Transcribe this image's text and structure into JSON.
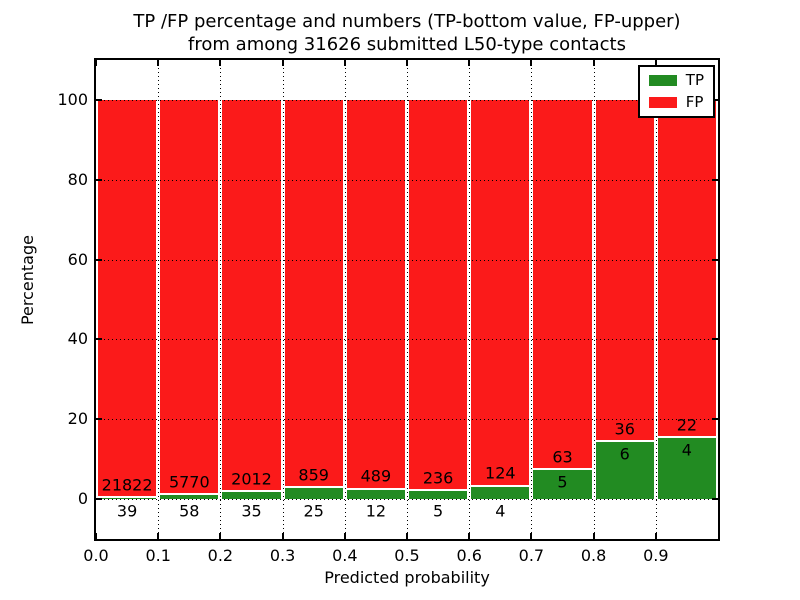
{
  "chart_data": {
    "type": "bar",
    "stacked": true,
    "normalized_to_percent": true,
    "title_lines": [
      "TP /FP percentage and numbers (TP-bottom value, FP-upper)",
      "from among 31626 submitted L50-type contacts"
    ],
    "xlabel": "Predicted probability",
    "ylabel": "Percentage",
    "categories": [
      "0.0-0.1",
      "0.1-0.2",
      "0.2-0.3",
      "0.3-0.4",
      "0.4-0.5",
      "0.5-0.6",
      "0.6-0.7",
      "0.7-0.8",
      "0.8-0.9",
      "0.9-1.0"
    ],
    "series": [
      {
        "name": "TP",
        "color": "#228b22",
        "values": [
          39,
          58,
          35,
          25,
          12,
          5,
          4,
          5,
          6,
          4
        ]
      },
      {
        "name": "FP",
        "color": "#fb1a1a",
        "values": [
          21822,
          5770,
          2012,
          859,
          489,
          236,
          124,
          63,
          36,
          22
        ]
      }
    ],
    "x_tick_labels": [
      "0.0",
      "0.1",
      "0.2",
      "0.3",
      "0.4",
      "0.5",
      "0.6",
      "0.7",
      "0.8",
      "0.9"
    ],
    "y_tick_values": [
      0,
      20,
      40,
      60,
      80,
      100
    ],
    "xlim": [
      0.0,
      1.0
    ],
    "ylim": [
      -10,
      110
    ],
    "grid": "dotted",
    "legend": {
      "position": "upper right",
      "entries": [
        "TP",
        "FP"
      ]
    }
  }
}
